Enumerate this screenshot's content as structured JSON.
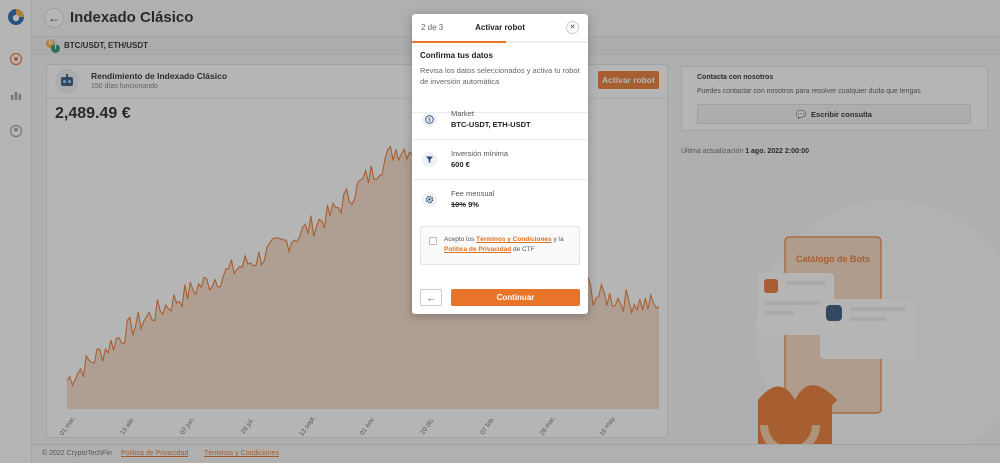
{
  "header": {
    "title": "Indexado Clásico",
    "pairs": "BTC/USDT, ETH/USDT"
  },
  "performance": {
    "title": "Rendimiento de Indexado Clásico",
    "subtitle": "150 días funcionando",
    "activate_label": "Activar robot",
    "balance": "2,489.49 €"
  },
  "contact": {
    "title": "Contacta con nosotros",
    "text": "Puedes contactar con nosotros para resolver cualquier duda que tengas",
    "button_label": "Escribir consulta"
  },
  "updated": {
    "prefix": "Última actualización",
    "value": "1 ago. 2022 2:00:00"
  },
  "catalog": {
    "label": "Catálogo de Bots"
  },
  "footer": {
    "copyright": "© 2022 CryptoTechFin",
    "privacy": "Política de Privacidad",
    "terms": "Términos y Condiciones"
  },
  "colors": {
    "accent": "#e8742a",
    "chart_fill": "#f6dcc8"
  },
  "modal": {
    "step": "2 de 3",
    "title": "Activar robot",
    "progress": 0.67,
    "confirm_title": "Confirma tus datos",
    "confirm_text": "Revisa los datos seleccionados y activa tu robot de inversión automática",
    "rows": [
      {
        "label": "Market",
        "value": "BTC-USDT, ETH-USDT",
        "icon": "dollar-coin-icon"
      },
      {
        "label": "Inversión mínima",
        "value": "600 €",
        "icon": "funnel-icon"
      },
      {
        "label": "Fee mensual",
        "old_value": "10%",
        "value": "9%",
        "icon": "gear-icon"
      }
    ],
    "terms": {
      "prefix": "Acepto los",
      "terms_link": "Términos y Condiciones",
      "middle": "y la",
      "privacy_link": "Política de Privacidad",
      "suffix": "de CTF"
    },
    "continue_label": "Continuar"
  },
  "chart_data": {
    "type": "area",
    "x": [
      "01 mar.",
      "19 abr.",
      "07 jun.",
      "26 jul.",
      "13 sept.",
      "01 nov.",
      "20 dic.",
      "07 feb.",
      "28 mar.",
      "16 may."
    ],
    "values": [
      2000,
      2950,
      3650,
      4200,
      4900,
      6050,
      6100,
      5400,
      3500,
      3300
    ],
    "title": "",
    "xlabel": "",
    "ylabel": "",
    "grid": false
  }
}
